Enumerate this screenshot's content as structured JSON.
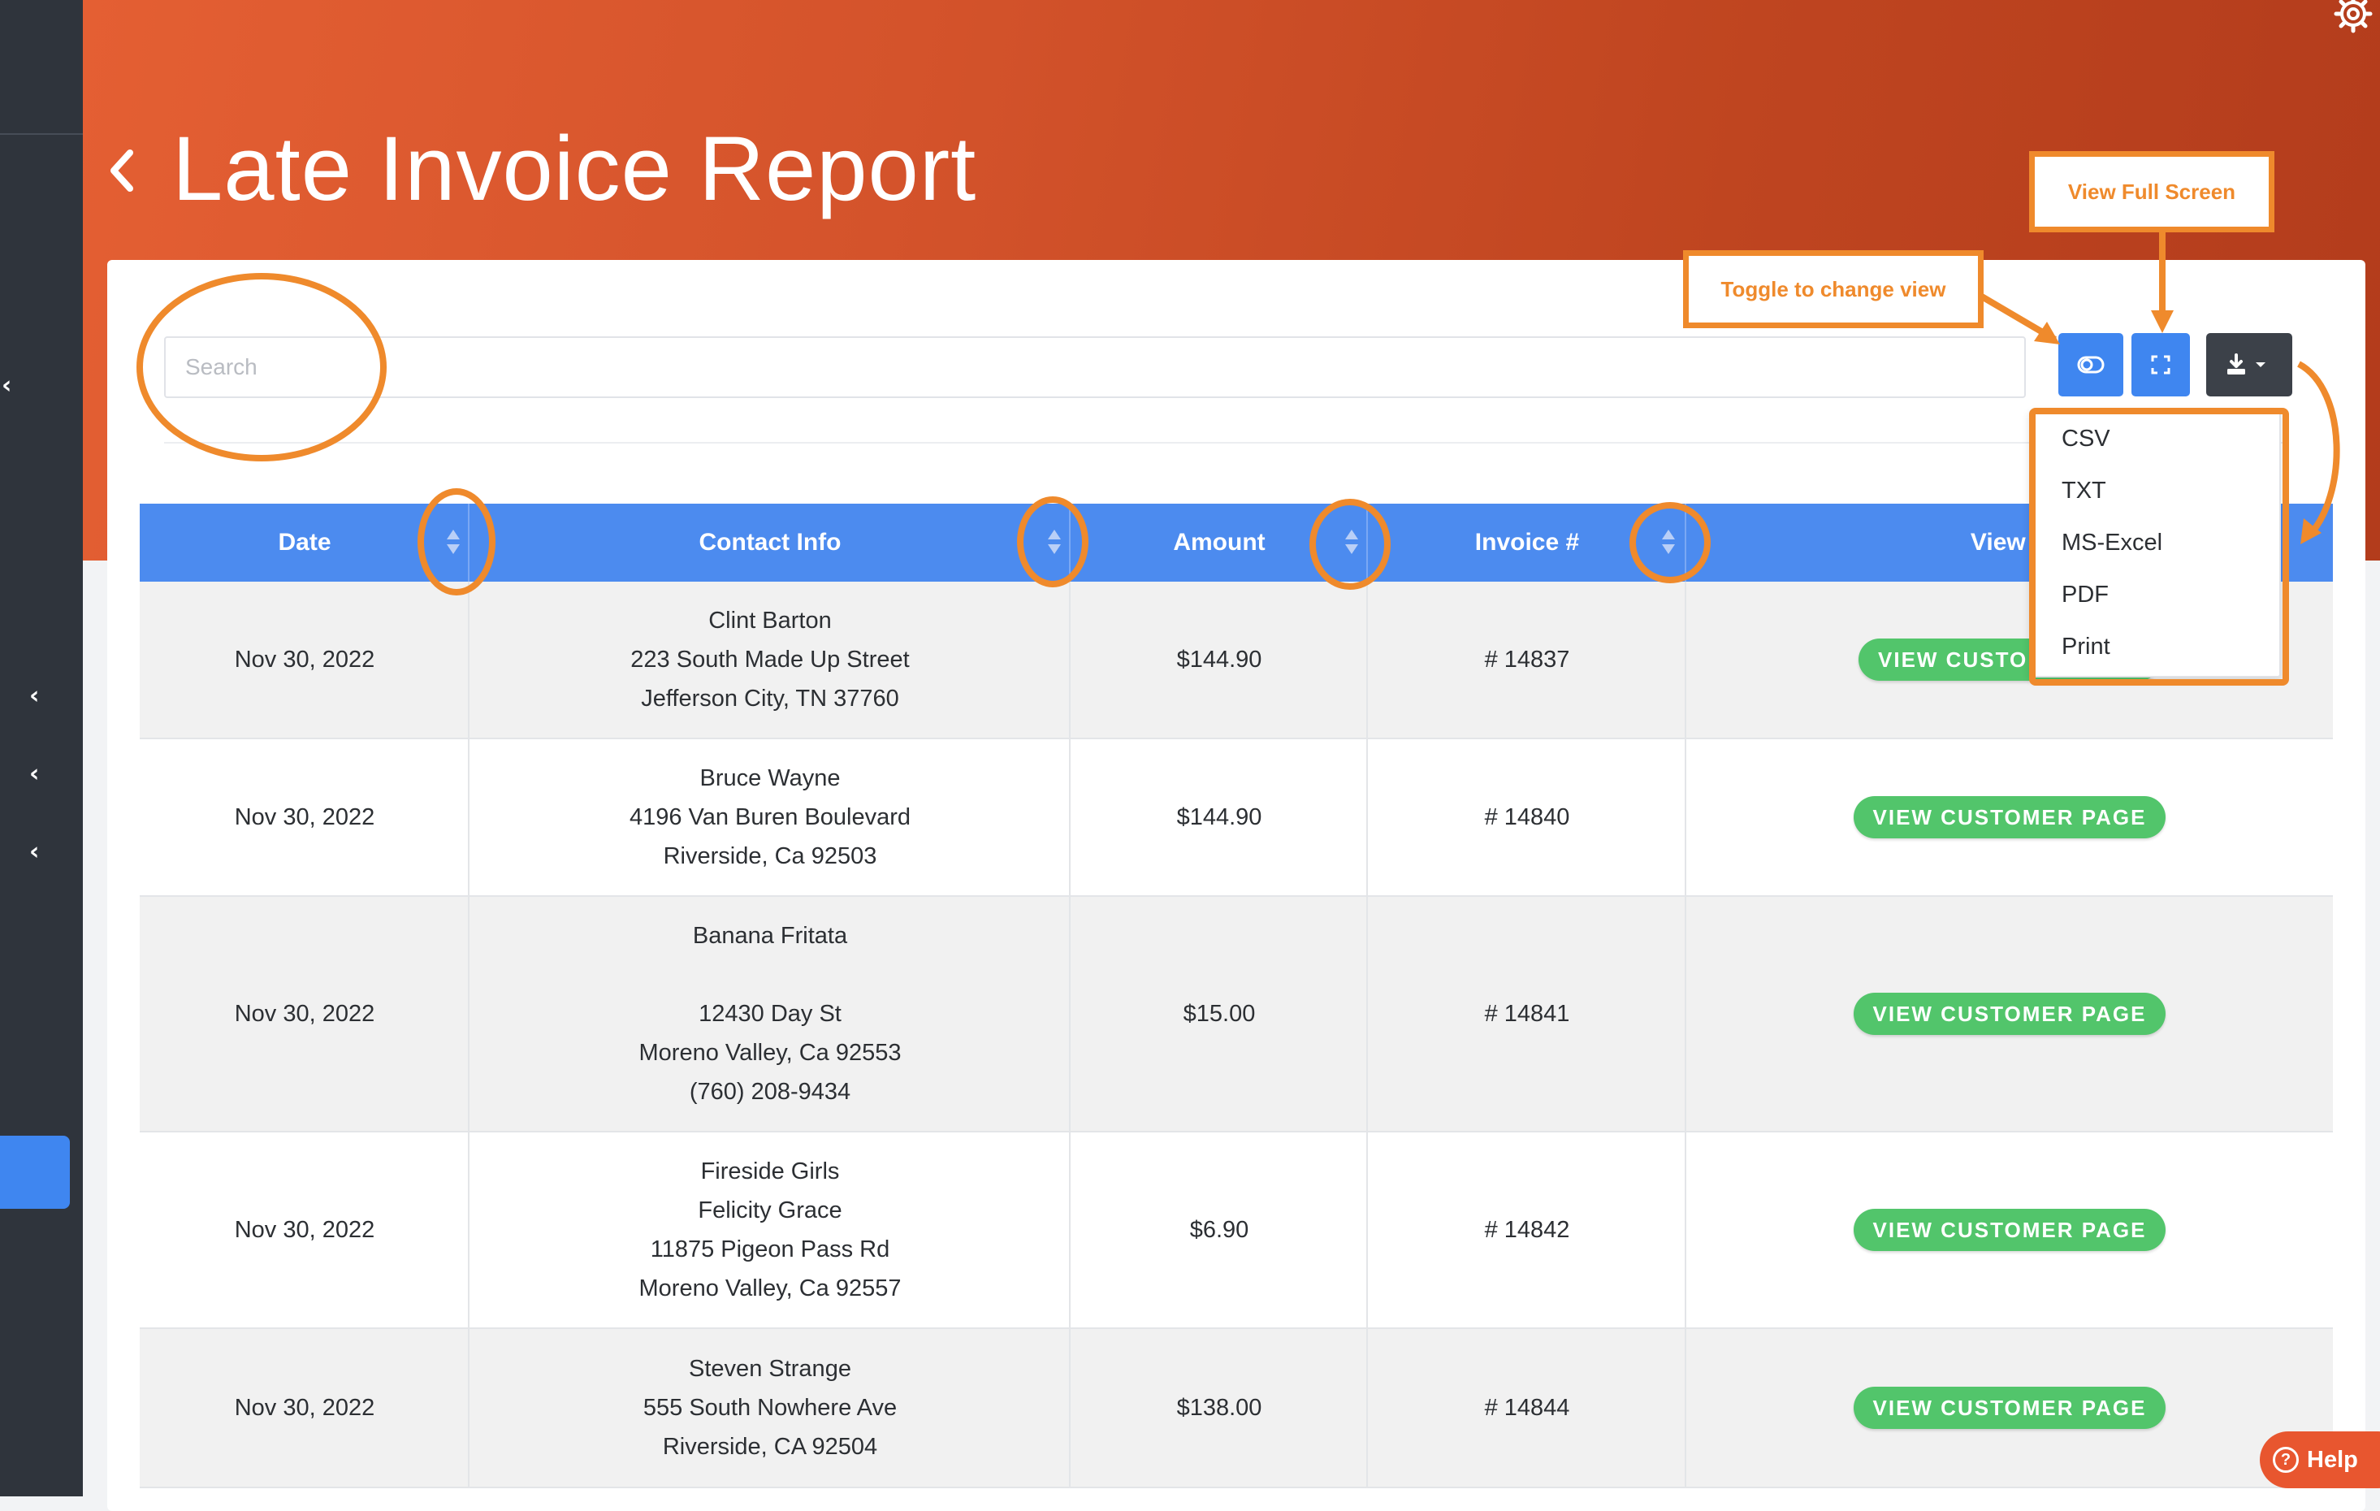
{
  "page": {
    "title": "Late Invoice Report"
  },
  "search": {
    "placeholder": "Search"
  },
  "toolbar": {
    "toggle_icon": "toggle-icon",
    "fullscreen_icon": "fullscreen-icon",
    "export_icon": "download-icon"
  },
  "export_menu": [
    "CSV",
    "TXT",
    "MS-Excel",
    "PDF",
    "Print"
  ],
  "table": {
    "columns": [
      "Date",
      "Contact Info",
      "Amount",
      "Invoice #",
      "View P"
    ],
    "rows": [
      {
        "date": "Nov 30, 2022",
        "contact": [
          "Clint Barton",
          "223 South Made Up Street",
          "Jefferson City, TN 37760"
        ],
        "amount": "$144.90",
        "invoice": "# 14837",
        "button": "VIEW CUSTOM"
      },
      {
        "date": "Nov 30, 2022",
        "contact": [
          "Bruce Wayne",
          "4196 Van Buren Boulevard",
          "Riverside, Ca 92503"
        ],
        "amount": "$144.90",
        "invoice": "# 14840",
        "button": "VIEW CUSTOMER PAGE"
      },
      {
        "date": "Nov 30, 2022",
        "contact": [
          "Banana Fritata",
          "",
          "12430 Day St",
          "Moreno Valley, Ca 92553",
          "(760) 208-9434"
        ],
        "amount": "$15.00",
        "invoice": "# 14841",
        "button": "VIEW CUSTOMER PAGE"
      },
      {
        "date": "Nov 30, 2022",
        "contact": [
          "Fireside Girls",
          "Felicity Grace",
          "11875 Pigeon Pass Rd",
          "Moreno Valley, Ca 92557"
        ],
        "amount": "$6.90",
        "invoice": "# 14842",
        "button": "VIEW CUSTOMER PAGE"
      },
      {
        "date": "Nov 30, 2022",
        "contact": [
          "Steven Strange",
          "555 South Nowhere Ave",
          "Riverside, CA 92504"
        ],
        "amount": "$138.00",
        "invoice": "# 14844",
        "button": "VIEW CUSTOMER PAGE"
      }
    ]
  },
  "annotations": {
    "fullscreen": "View Full Screen",
    "toggle": "Toggle to change view"
  },
  "help": {
    "label": "Help"
  },
  "colors": {
    "header": "#d4532b",
    "primary": "#3f86f0",
    "table_header": "#4c8bef",
    "success": "#52c56b",
    "annotation": "#ef8a2c",
    "sidebar": "#2f343c"
  }
}
